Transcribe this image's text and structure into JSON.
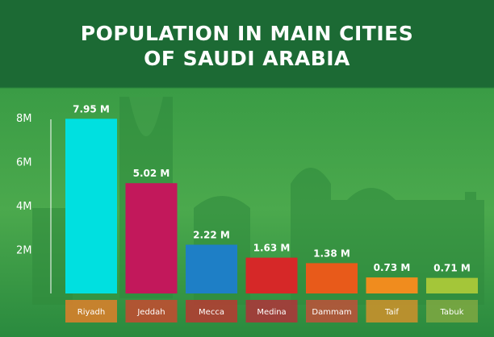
{
  "title_line1": "POPULATION IN MAIN CITIES",
  "title_line2": "OF SAUDI ARABIA",
  "chart_data": {
    "type": "bar",
    "title": "POPULATION IN MAIN CITIES OF SAUDI ARABIA",
    "categories": [
      "Riyadh",
      "Jeddah",
      "Mecca",
      "Medina",
      "Dammam",
      "Taif",
      "Tabuk"
    ],
    "values": [
      7.95,
      5.02,
      2.22,
      1.63,
      1.38,
      0.73,
      0.71
    ],
    "value_labels": [
      "7.95 M",
      "5.02 M",
      "2.22 M",
      "1.63 M",
      "1.38 M",
      "0.73 M",
      "0.71 M"
    ],
    "y_ticks": [
      2,
      4,
      6,
      8
    ],
    "y_tick_labels": [
      "2M",
      "4M",
      "6M",
      "8M"
    ],
    "ylim": [
      0,
      8
    ],
    "xlabel": "",
    "ylabel": "",
    "grid": false,
    "legend": "none",
    "bar_colors": [
      "#00e0e0",
      "#c2185b",
      "#1e7fc6",
      "#d62828",
      "#e85a1a",
      "#f08c1e",
      "#a4c639"
    ],
    "label_strip_colors": [
      "#e07f2a",
      "#c74a30",
      "#b83a32",
      "#b0323a",
      "#c0503a",
      "#d0902c",
      "#7fa842"
    ]
  }
}
